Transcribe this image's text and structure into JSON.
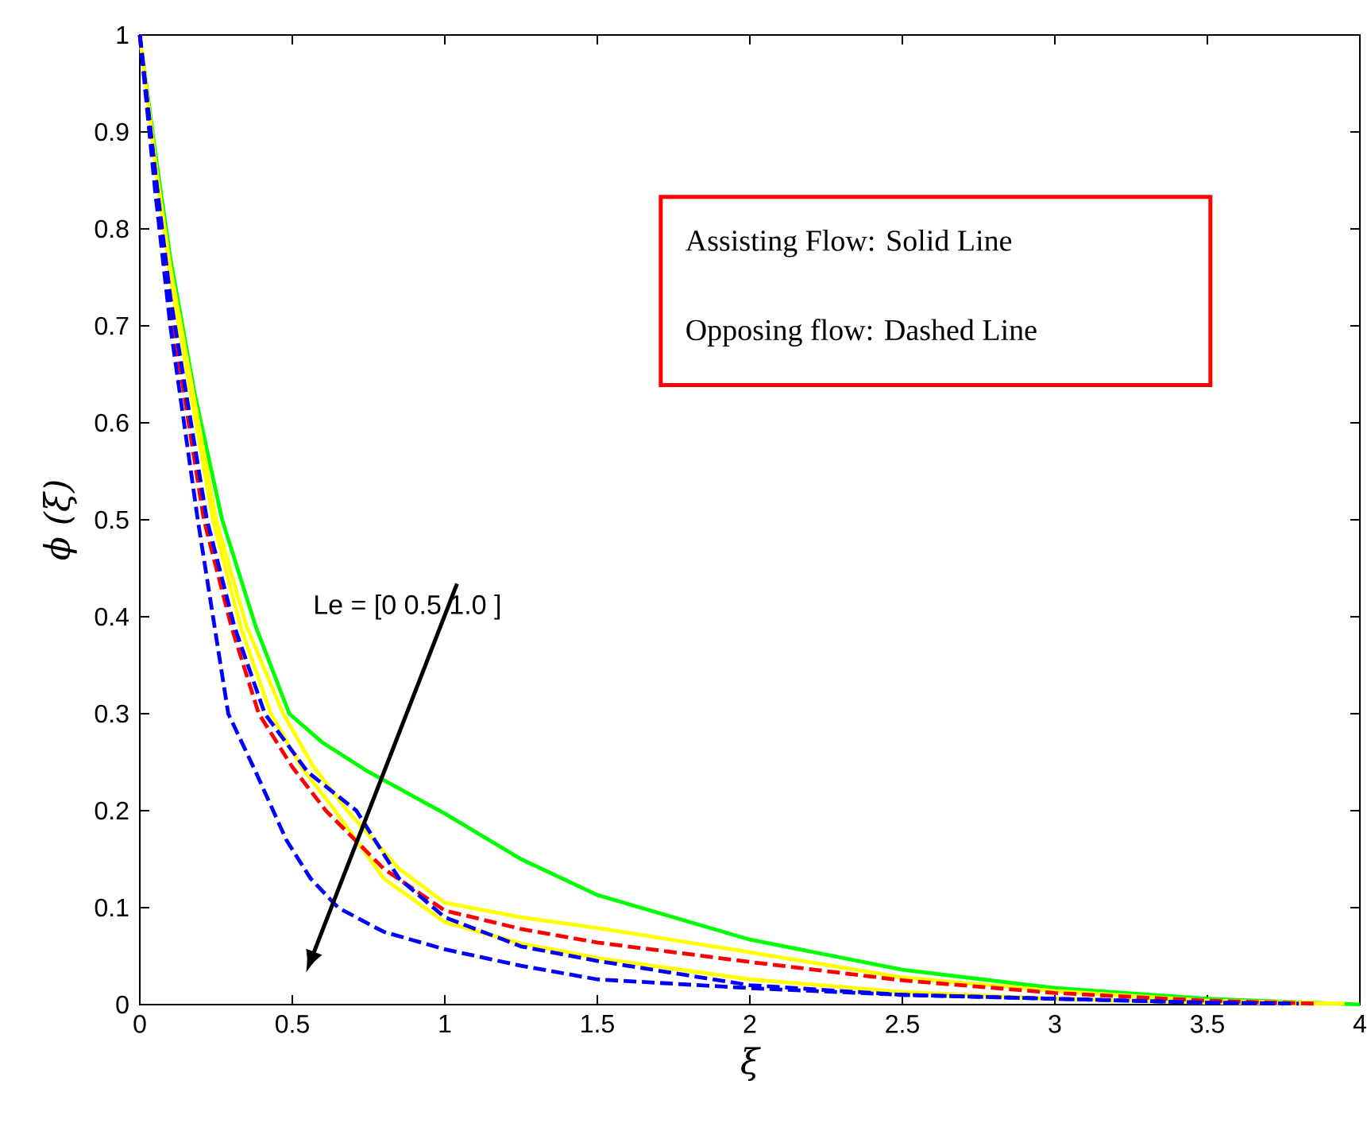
{
  "chart_data": {
    "type": "line",
    "xlabel": "ξ",
    "ylabel": "ϕ (ξ)",
    "xlim": [
      0,
      4
    ],
    "ylim": [
      0,
      1
    ],
    "xticks": [
      0,
      0.5,
      1,
      1.5,
      2,
      2.5,
      3,
      3.5,
      4
    ],
    "yticks": [
      0,
      0.1,
      0.2,
      0.3,
      0.4,
      0.5,
      0.6,
      0.7,
      0.8,
      0.9,
      1
    ],
    "annotations": [
      "Le = [0  0.5  1.0 ]",
      "Assisting Flow:  Solid Line",
      "Opposing flow: Dashed Line"
    ],
    "series": [
      {
        "color": "#00ff00",
        "line_style": "solid",
        "x": [
          0,
          0.05,
          0.1,
          0.18,
          0.27,
          0.38,
          0.49,
          0.6,
          0.75,
          1,
          1.25,
          1.5,
          2,
          2.5,
          3,
          3.5,
          4
        ],
        "values": [
          1,
          0.88,
          0.77,
          0.63,
          0.5,
          0.39,
          0.3,
          0.27,
          0.24,
          0.197,
          0.15,
          0.113,
          0.067,
          0.036,
          0.017,
          0.006,
          0
        ]
      },
      {
        "color": "#ffff00",
        "line_style": "solid",
        "x": [
          0,
          0.05,
          0.1,
          0.24,
          0.33,
          0.43,
          0.53,
          0.64,
          0.8,
          1,
          1.25,
          1.5,
          2,
          2.5,
          3,
          3.5,
          3.9
        ],
        "values": [
          1,
          0.87,
          0.75,
          0.5,
          0.39,
          0.3,
          0.245,
          0.2,
          0.13,
          0.085,
          0.063,
          0.048,
          0.026,
          0.013,
          0.006,
          0.002,
          0.001
        ]
      },
      {
        "color": "#ffff00",
        "line_style": "solid",
        "x": [
          0,
          0.05,
          0.1,
          0.25,
          0.35,
          0.47,
          0.57,
          0.68,
          0.85,
          1,
          1.25,
          1.5,
          2,
          2.5,
          3,
          3.5,
          3.95
        ],
        "values": [
          1,
          0.87,
          0.76,
          0.5,
          0.39,
          0.3,
          0.245,
          0.2,
          0.14,
          0.105,
          0.09,
          0.079,
          0.054,
          0.028,
          0.014,
          0.004,
          0.001
        ]
      },
      {
        "color": "#ff0000",
        "line_style": "dashed",
        "x": [
          0,
          0.05,
          0.1,
          0.21,
          0.3,
          0.39,
          0.5,
          0.61,
          0.8,
          1,
          1.25,
          1.5,
          2,
          2.5,
          3,
          3.5,
          3.85
        ],
        "values": [
          1,
          0.86,
          0.72,
          0.5,
          0.39,
          0.3,
          0.245,
          0.2,
          0.14,
          0.097,
          0.078,
          0.064,
          0.044,
          0.025,
          0.012,
          0.004,
          0.001
        ]
      },
      {
        "color": "#0000ff",
        "line_style": "dashed",
        "x": [
          0,
          0.05,
          0.1,
          0.22,
          0.31,
          0.41,
          0.55,
          0.71,
          0.85,
          1,
          1.25,
          1.5,
          2,
          2.5,
          3,
          3.5,
          3.8
        ],
        "values": [
          1,
          0.86,
          0.73,
          0.5,
          0.39,
          0.3,
          0.24,
          0.2,
          0.13,
          0.09,
          0.06,
          0.045,
          0.02,
          0.01,
          0.006,
          0.002,
          0.001
        ]
      },
      {
        "color": "#0000ff",
        "line_style": "dashed",
        "x": [
          0,
          0.05,
          0.1,
          0.19,
          0.24,
          0.29,
          0.38,
          0.48,
          0.56,
          0.65,
          0.8,
          1,
          1.25,
          1.5,
          2,
          2.5,
          3,
          3.5,
          3.75
        ],
        "values": [
          1,
          0.84,
          0.7,
          0.5,
          0.4,
          0.3,
          0.24,
          0.17,
          0.13,
          0.1,
          0.075,
          0.057,
          0.04,
          0.026,
          0.017,
          0.01,
          0.006,
          0.002,
          0.001
        ]
      }
    ]
  }
}
